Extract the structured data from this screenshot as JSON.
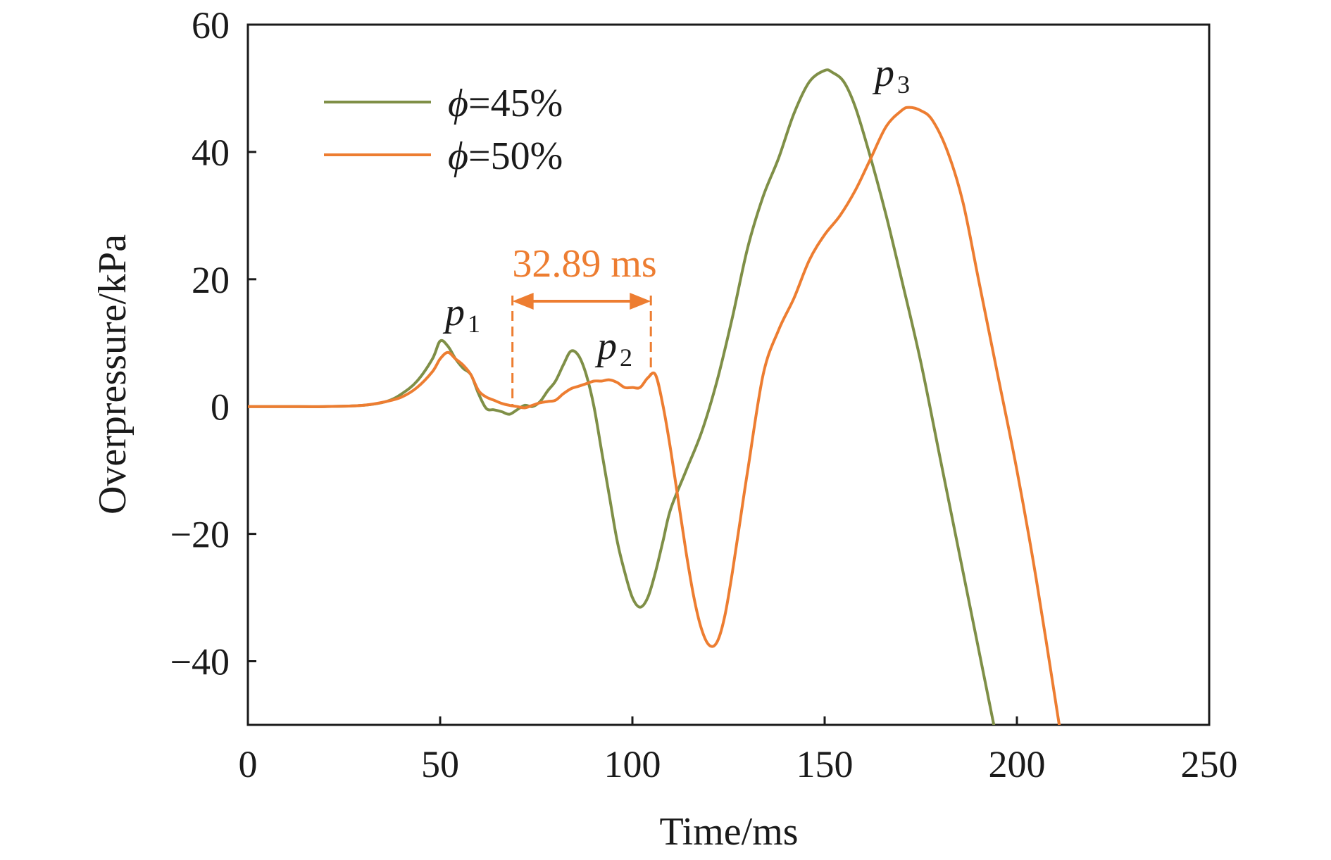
{
  "chart_data": {
    "type": "line",
    "title": "",
    "xlabel": "Time/ms",
    "ylabel": "Overpressure/kPa",
    "xlim": [
      0,
      250
    ],
    "ylim": [
      -50,
      60
    ],
    "xticks": [
      "0",
      "50",
      "100",
      "150",
      "200",
      "250"
    ],
    "yticks": [
      "−40",
      "−20",
      "0",
      "20",
      "40",
      "60"
    ],
    "legend_position": "top-left",
    "grid": false,
    "series": [
      {
        "name": "ϕ=45%",
        "legend_symbol": "ϕ",
        "legend_rest": "=45%",
        "color": "#7f8f47",
        "x": [
          0,
          10,
          20,
          30,
          36,
          40,
          44,
          48,
          50,
          52,
          54,
          56,
          58,
          60,
          62,
          64,
          66,
          68,
          70,
          72,
          74,
          76,
          78,
          80,
          82,
          84,
          86,
          88,
          90,
          92,
          94,
          96,
          98,
          100,
          102,
          104,
          106,
          108,
          110,
          114,
          118,
          122,
          126,
          130,
          134,
          138,
          142,
          146,
          150,
          152,
          155,
          158,
          162,
          166,
          170,
          175,
          180,
          185,
          190,
          194
        ],
        "y": [
          0,
          0,
          0,
          0.2,
          0.8,
          2,
          4,
          7.5,
          10.3,
          9.5,
          7.5,
          6,
          5,
          2,
          -0.3,
          -0.5,
          -0.8,
          -1.2,
          -0.5,
          0.2,
          0,
          0.8,
          2.5,
          4,
          6.5,
          8.7,
          8,
          5,
          0,
          -7,
          -14,
          -21,
          -26,
          -30,
          -31.5,
          -30,
          -26,
          -21,
          -16,
          -10,
          -4,
          4,
          14,
          25,
          33,
          39,
          46,
          51,
          52.8,
          52.5,
          51,
          47,
          39,
          30,
          20,
          7,
          -8,
          -23,
          -38,
          -50
        ]
      },
      {
        "name": "ϕ=50%",
        "legend_symbol": "ϕ",
        "legend_rest": "=50%",
        "color": "#ed7d31",
        "x": [
          0,
          10,
          20,
          30,
          36,
          40,
          44,
          48,
          50,
          52,
          54,
          56,
          58,
          60,
          62,
          64,
          66,
          68,
          70,
          72,
          74,
          76,
          78,
          80,
          82,
          84,
          86,
          88,
          90,
          92,
          94,
          96,
          98,
          100,
          102,
          104,
          106,
          108,
          110,
          112,
          114,
          116,
          118,
          120,
          122,
          124,
          126,
          128,
          130,
          134,
          138,
          142,
          146,
          150,
          154,
          158,
          162,
          166,
          170,
          172,
          175,
          178,
          182,
          186,
          190,
          195,
          200,
          205,
          211
        ],
        "y": [
          0,
          0,
          0,
          0.2,
          0.8,
          1.5,
          3,
          5.5,
          7.5,
          8.5,
          7.5,
          6.5,
          5,
          2.5,
          1.5,
          1,
          0.5,
          0.2,
          0,
          -0.2,
          0.2,
          0.6,
          0.8,
          1,
          2,
          2.8,
          3.2,
          3.6,
          4,
          4,
          4.2,
          3.8,
          3,
          3,
          3,
          4.5,
          5,
          0,
          -7,
          -15,
          -23,
          -30,
          -35,
          -37.5,
          -37,
          -33,
          -26,
          -18,
          -10,
          5,
          12,
          17,
          23,
          27,
          30,
          34,
          39,
          44,
          46.5,
          47,
          46.5,
          45,
          40,
          32,
          20,
          5,
          -10,
          -27,
          -50
        ]
      }
    ],
    "annotations": {
      "interval_label": "32.89 ms",
      "interval_color": "#ed7d31",
      "interval_start_x": 68.8,
      "interval_end_x": 104.8,
      "peaks": [
        {
          "symbol": "p",
          "sub": "1"
        },
        {
          "symbol": "p",
          "sub": "2"
        },
        {
          "symbol": "p",
          "sub": "3"
        }
      ]
    }
  }
}
